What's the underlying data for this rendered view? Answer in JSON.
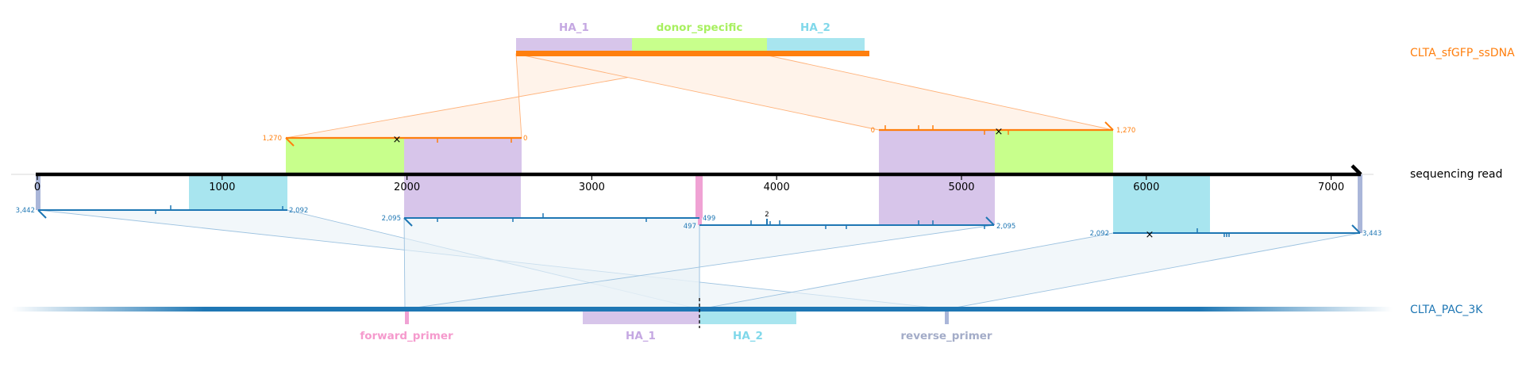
{
  "colors": {
    "donor": "#ff7f0e",
    "donor_fill": "#fff3ea",
    "target": "#1f77b4",
    "target_fill": "#eaf1f7",
    "ha1": "#d7c5ea",
    "ha1_label": "#c5a8e2",
    "donor_specific": "#c8ff8c",
    "donor_specific_label": "#a8f060",
    "ha2": "#a8e5ef",
    "ha2_label": "#80d8ea",
    "forward_primer": "#f0a2d4",
    "forward_primer_label": "#f59acd",
    "reverse_primer": "#aab6d9",
    "reverse_primer_label": "#a3acc8"
  },
  "donor": {
    "name": "CLTA_sfGFP_ssDNA",
    "feature_labels": {
      "ha1": "HA_1",
      "donor_specific": "donor_specific",
      "ha2": "HA_2"
    }
  },
  "read": {
    "label": "sequencing read",
    "axis_ticks": [
      "0",
      "1000",
      "2000",
      "3000",
      "4000",
      "5000",
      "6000",
      "7000"
    ],
    "tick_values": [
      0,
      1000,
      2000,
      3000,
      4000,
      5000,
      6000,
      7000
    ],
    "length": 7170
  },
  "target": {
    "name": "CLTA_PAC_3K",
    "feature_labels": {
      "forward_primer": "forward_primer",
      "ha1": "HA_1",
      "ha2": "HA_2",
      "reverse_primer": "reverse_primer"
    }
  },
  "alignments": {
    "donor_left": {
      "start_label": "1,270",
      "end_label": "0"
    },
    "donor_right": {
      "start_label": "0",
      "end_label": "1,270"
    },
    "target_1": {
      "start_label": "3,442",
      "end_label": "2,092"
    },
    "target_2": {
      "start_label": "2,095",
      "end_label": "499"
    },
    "target_3": {
      "start_label": "497",
      "end_label": "2,095",
      "indel_label": "2"
    },
    "target_4": {
      "start_label": "2,092",
      "end_label": "3,443"
    }
  }
}
